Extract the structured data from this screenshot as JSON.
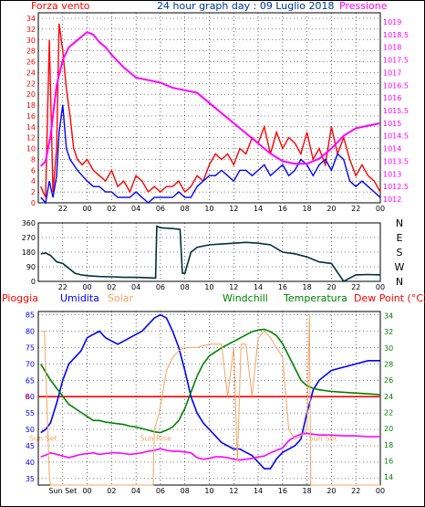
{
  "colors": {
    "wind": "#ff0000",
    "gust": "#ff0000",
    "avg_wind": "#0000ff",
    "pressure": "#ff00ff",
    "direction": "#003333",
    "humidity": "#0000ff",
    "solar": "#f4a460",
    "temperature": "#008000",
    "dewpoint": "#ff00ff",
    "rain": "#ff0000",
    "windchill": "#008000",
    "title": "#003399",
    "axis": "#000000"
  },
  "chart_data": [
    {
      "type": "line",
      "title": "24 hour graph day : 09 Luglio 2018",
      "left_label": "Forza vento",
      "right_label": "Pressione",
      "x_ticks": [
        "22",
        "00",
        "02",
        "04",
        "06",
        "08",
        "10",
        "12",
        "14",
        "16",
        "18",
        "20",
        "22",
        "00"
      ],
      "y_left_ticks": [
        "0",
        "2",
        "4",
        "6",
        "8",
        "10",
        "12",
        "14",
        "16",
        "18",
        "20",
        "22",
        "24",
        "26",
        "28",
        "30",
        "32",
        "34"
      ],
      "y_left_range": [
        0,
        34
      ],
      "y_right_ticks": [
        "1012",
        "1012.5",
        "1013",
        "1013.5",
        "1014",
        "1014.5",
        "1015",
        "1015.5",
        "1016",
        "1016.5",
        "1017",
        "1017.5",
        "1018",
        "1018.5",
        "1019"
      ],
      "y_right_range": [
        1012,
        1019
      ],
      "series": [
        {
          "key": "gust",
          "hours": [
            20.2,
            20.6,
            20.9,
            21.2,
            21.5,
            21.7,
            22.0,
            22.3,
            22.6,
            22.9,
            23.2,
            23.6,
            24.0,
            24.5,
            25,
            25.5,
            26,
            26.5,
            27,
            27.5,
            28,
            28.5,
            29,
            29.5,
            30,
            30.5,
            31,
            31.5,
            32,
            32.5,
            33,
            33.5,
            34,
            34.5,
            35,
            35.5,
            36,
            36.5,
            37,
            37.5,
            38,
            38.5,
            39,
            39.5,
            40,
            40.5,
            41,
            41.5,
            42,
            42.5,
            43,
            43.5,
            44,
            44.5,
            45,
            45.5,
            46,
            46.5,
            47,
            47.5,
            48
          ],
          "values": [
            3,
            1,
            30,
            2,
            10,
            33,
            28,
            21,
            16,
            10,
            8,
            7,
            8,
            6,
            5,
            4,
            6,
            3,
            4,
            2,
            5,
            4,
            2,
            3,
            2,
            3,
            3,
            4,
            2,
            3,
            5,
            4,
            7,
            9,
            8,
            9,
            7,
            10,
            9,
            12,
            11,
            14,
            9,
            13,
            10,
            12,
            11,
            9,
            13,
            8,
            10,
            7,
            14,
            9,
            12,
            8,
            5,
            7,
            5,
            4,
            2
          ]
        },
        {
          "key": "avg_wind",
          "hours": [
            20.2,
            20.6,
            20.9,
            21.2,
            21.5,
            21.7,
            22.0,
            22.3,
            22.6,
            22.9,
            23.2,
            23.6,
            24.0,
            24.5,
            25,
            25.5,
            26,
            26.5,
            27,
            27.5,
            28,
            28.5,
            29,
            29.5,
            30,
            30.5,
            31,
            31.5,
            32,
            32.5,
            33,
            33.5,
            34,
            34.5,
            35,
            35.5,
            36,
            36.5,
            37,
            37.5,
            38,
            38.5,
            39,
            39.5,
            40,
            40.5,
            41,
            41.5,
            42,
            42.5,
            43,
            43.5,
            44,
            44.5,
            45,
            45.5,
            46,
            46.5,
            47,
            47.5,
            48
          ],
          "values": [
            1,
            0,
            4,
            1,
            5,
            13,
            18,
            10,
            8,
            7,
            6,
            5,
            4,
            3,
            3,
            2,
            2,
            1,
            1,
            1,
            2,
            1,
            0,
            1,
            1,
            1,
            1,
            2,
            1,
            1,
            3,
            4,
            5,
            5,
            6,
            5,
            4,
            6,
            6,
            5,
            6,
            7,
            5,
            6,
            7,
            5,
            6,
            8,
            7,
            5,
            7,
            8,
            6,
            9,
            8,
            4,
            3,
            4,
            3,
            2,
            1
          ]
        },
        {
          "key": "pressure",
          "hours": [
            20.2,
            20.6,
            21,
            21.5,
            22,
            22.5,
            23,
            23.5,
            24,
            24.5,
            25,
            25.5,
            26,
            27,
            28,
            29,
            30,
            31,
            32,
            33,
            34,
            35,
            36,
            37,
            38,
            39,
            40,
            41,
            42,
            43,
            44,
            45,
            46,
            47,
            48
          ],
          "values": [
            1013.3,
            1013.5,
            1014.5,
            1016.5,
            1017.5,
            1018,
            1018.2,
            1018.4,
            1018.6,
            1018.5,
            1018.2,
            1018,
            1017.7,
            1017.2,
            1016.8,
            1016.7,
            1016.6,
            1016.4,
            1016.3,
            1016.2,
            1015.8,
            1015.4,
            1015,
            1014.6,
            1014.2,
            1013.8,
            1013.5,
            1013.4,
            1013.4,
            1013.6,
            1014,
            1014.5,
            1014.8,
            1014.9,
            1015.0
          ]
        }
      ]
    },
    {
      "type": "line",
      "title": "",
      "x_ticks": [
        "22",
        "00",
        "02",
        "04",
        "06",
        "08",
        "10",
        "12",
        "14",
        "16",
        "18",
        "20",
        "22",
        "00"
      ],
      "y_ticks": [
        "0",
        "90",
        "180",
        "270",
        "360"
      ],
      "y_range": [
        0,
        360
      ],
      "direction_labels": [
        "N",
        "W",
        "S",
        "E",
        "N"
      ],
      "series": [
        {
          "key": "direction",
          "hours": [
            20.2,
            20.6,
            21,
            21.5,
            22,
            22.5,
            23,
            23.5,
            24,
            25,
            26,
            27,
            28,
            29,
            29.6,
            29.7,
            30,
            31,
            31.6,
            31.8,
            32,
            32.5,
            33,
            34,
            35,
            36,
            37,
            38,
            39,
            40,
            41,
            42,
            43,
            44,
            45,
            46,
            47,
            48
          ],
          "values": [
            170,
            175,
            160,
            120,
            110,
            80,
            50,
            40,
            35,
            30,
            28,
            25,
            25,
            22,
            20,
            340,
            330,
            325,
            320,
            50,
            50,
            180,
            210,
            225,
            230,
            235,
            240,
            235,
            225,
            180,
            170,
            150,
            120,
            110,
            0,
            40,
            42,
            40
          ]
        }
      ]
    },
    {
      "type": "line",
      "title": "",
      "left_labels": [
        "Pioggia",
        "Umidita",
        "Solar"
      ],
      "right_labels": [
        "Windchill",
        "Temperatura",
        "Dew Point (°C)"
      ],
      "x_ticks": [
        "Sun Set",
        "00",
        "02",
        "04",
        "06",
        "08",
        "10",
        "12",
        "14",
        "16",
        "18",
        "20",
        "22",
        "00"
      ],
      "y_left_ticks": [
        "35",
        "40",
        "45",
        "50",
        "55",
        "60",
        "65",
        "70",
        "75",
        "80",
        "85"
      ],
      "y_left_range": [
        33,
        86
      ],
      "y_right_ticks": [
        "14",
        "16",
        "18",
        "20",
        "22",
        "24",
        "26",
        "28",
        "30",
        "32",
        "34"
      ],
      "y_right_range": [
        13,
        34.5
      ],
      "rain_left_value": "0",
      "rain_level": 60,
      "annotations": [
        "Sun Set",
        "Sun Rise",
        "Sun Set"
      ],
      "series": [
        {
          "key": "humidity",
          "hours": [
            20.2,
            20.6,
            21,
            21.5,
            22,
            22.5,
            23,
            23.5,
            24,
            24.5,
            25,
            25.5,
            26,
            26.5,
            27,
            27.5,
            28,
            28.5,
            29,
            29.5,
            30,
            30.5,
            31,
            31.5,
            32,
            32.5,
            33,
            33.5,
            34,
            34.5,
            35,
            35.5,
            36,
            36.5,
            37,
            37.5,
            38,
            38.5,
            39,
            39.5,
            40,
            40.5,
            41,
            41.5,
            42,
            42.5,
            43,
            44,
            45,
            46,
            47,
            48
          ],
          "values": [
            49,
            50,
            52,
            58,
            65,
            70,
            72,
            74,
            78,
            79,
            80,
            78,
            77,
            76,
            77,
            78,
            79,
            80,
            82,
            84,
            85,
            84,
            80,
            75,
            68,
            60,
            55,
            52,
            50,
            48,
            46,
            45,
            44,
            44,
            43,
            42,
            40,
            38,
            38,
            41,
            43,
            44,
            45,
            47,
            55,
            62,
            65,
            68,
            69,
            70,
            71,
            71
          ]
        },
        {
          "key": "temperature",
          "hours": [
            20.2,
            20.6,
            21,
            21.5,
            22,
            22.5,
            23,
            23.5,
            24,
            24.5,
            25,
            25.5,
            26,
            26.5,
            27,
            27.5,
            28,
            28.5,
            29,
            29.5,
            30,
            30.5,
            31,
            31.5,
            32,
            32.5,
            33,
            33.5,
            34,
            34.5,
            35,
            35.5,
            36,
            36.5,
            37,
            37.5,
            38,
            38.5,
            39,
            39.5,
            40,
            40.5,
            41,
            41.5,
            42,
            42.5,
            43,
            44,
            45,
            46,
            47,
            48
          ],
          "values": [
            28,
            27,
            26,
            25,
            24,
            23,
            22.5,
            22,
            21.5,
            21,
            21,
            20.8,
            20.7,
            20.6,
            20.5,
            20.3,
            20.2,
            20,
            19.8,
            19.6,
            19.5,
            19.8,
            20.2,
            21,
            22.5,
            24.5,
            26.5,
            28,
            29,
            29.5,
            30,
            30.4,
            30.8,
            31.2,
            31.6,
            32,
            32.2,
            32.3,
            32,
            31.5,
            30.5,
            29,
            27.5,
            26,
            25.3,
            25,
            24.8,
            24.6,
            24.5,
            24.4,
            24.3,
            24.2
          ]
        },
        {
          "key": "dewpoint",
          "hours": [
            20.2,
            20.6,
            21,
            21.5,
            22,
            22.5,
            23,
            23.5,
            24,
            24.5,
            25,
            25.5,
            26,
            26.5,
            27,
            27.5,
            28,
            28.5,
            29,
            29.5,
            30,
            30.5,
            31,
            31.5,
            32,
            32.5,
            33,
            33.5,
            34,
            34.5,
            35,
            35.5,
            36,
            36.5,
            37,
            37.5,
            38,
            38.5,
            39,
            39.5,
            40,
            40.5,
            41,
            41.5,
            42,
            42.5,
            43,
            44,
            45,
            46,
            47,
            48
          ],
          "values": [
            16.5,
            16.7,
            17,
            16.8,
            16.6,
            16.4,
            16.6,
            16.8,
            16.9,
            17,
            16.8,
            16.9,
            17,
            17,
            16.9,
            16.8,
            16.9,
            17,
            17.2,
            17.3,
            17.5,
            17.3,
            17.2,
            17.2,
            17.1,
            17,
            16.4,
            16.2,
            16.3,
            16.5,
            16.5,
            16.4,
            16.2,
            16.1,
            16.2,
            16.3,
            16.5,
            16.6,
            17,
            17.3,
            17.6,
            18.5,
            19,
            19.3,
            19.4,
            19.3,
            19.2,
            19.2,
            19.1,
            19.1,
            19,
            19
          ]
        },
        {
          "key": "solar",
          "hours": [
            20.2,
            20.5,
            20.9,
            21.0,
            29.4,
            29.5,
            29.9,
            30.5,
            31,
            31.5,
            32,
            32.5,
            33,
            34,
            35,
            35.5,
            36,
            36.3,
            36.6,
            37,
            37.5,
            38,
            38.5,
            39,
            39.5,
            40,
            40.5,
            41,
            41.5,
            42,
            42.2,
            42.3,
            48
          ],
          "values": [
            80,
            80,
            36,
            33,
            33,
            50,
            55,
            68,
            72,
            74,
            75,
            75,
            75,
            76,
            76,
            60,
            75,
            40,
            76,
            76,
            60,
            78,
            80,
            78,
            75,
            72,
            50,
            47,
            48,
            50,
            85,
            33,
            33
          ]
        }
      ]
    }
  ]
}
